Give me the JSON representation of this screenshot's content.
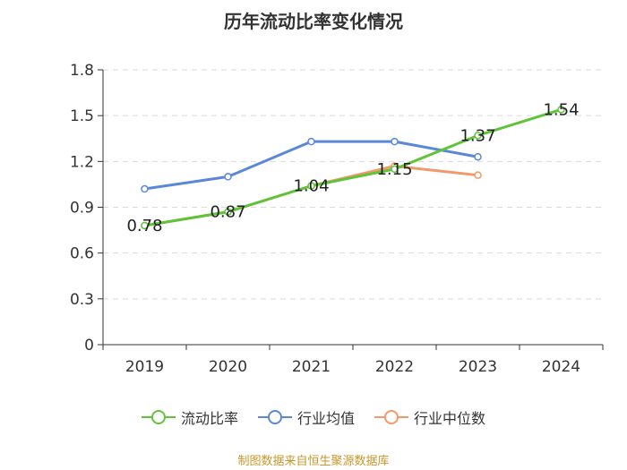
{
  "title": "历年流动比率变化情况",
  "source": "制图数据来自恒生聚源数据库",
  "source_color": "#c8962a",
  "chart_data": {
    "type": "line",
    "categories": [
      "2019",
      "2020",
      "2021",
      "2022",
      "2023",
      "2024"
    ],
    "ylim": [
      0,
      1.8
    ],
    "yticks": [
      "0",
      "0.3",
      "0.6",
      "0.9",
      "1.2",
      "1.5",
      "1.8"
    ],
    "grid": true,
    "legend_position": "bottom",
    "series": [
      {
        "name": "流动比率",
        "color": "#5fc43a",
        "values": [
          0.78,
          0.87,
          1.04,
          1.15,
          1.37,
          1.54
        ],
        "labels": [
          "0.78",
          "0.87",
          "1.04",
          "1.15",
          "1.37",
          "1.54"
        ]
      },
      {
        "name": "行业均值",
        "color": "#5b87d9",
        "values": [
          1.02,
          1.1,
          1.33,
          1.33,
          1.23,
          null
        ]
      },
      {
        "name": "行业中位数",
        "color": "#f09a6c",
        "values": [
          0.78,
          0.87,
          1.04,
          1.17,
          1.11,
          null
        ]
      }
    ]
  }
}
